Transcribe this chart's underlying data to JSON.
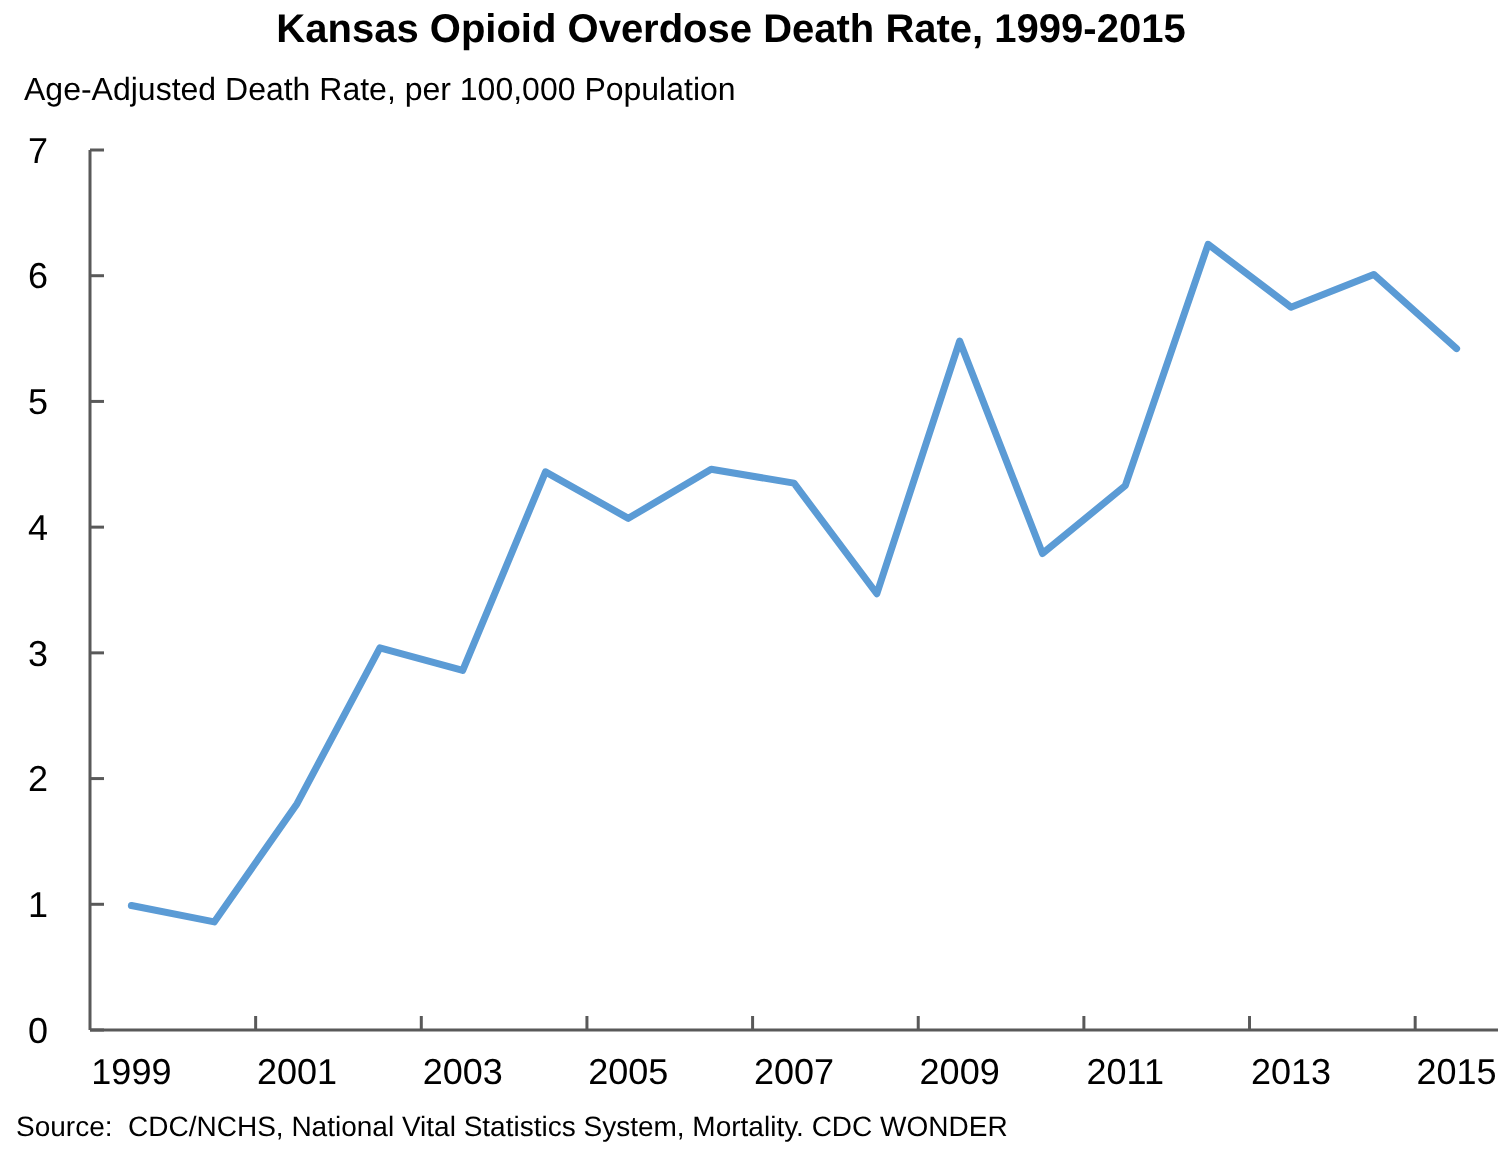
{
  "chart_data": {
    "type": "line",
    "title": "Kansas Opioid Overdose Death Rate, 1999-2015",
    "ylabel": "Age-Adjusted Death Rate, per 100,000 Population",
    "annotations": [
      "Source:  CDC/NCHS, National Vital Statistics System, Mortality. CDC WONDER"
    ],
    "categories": [
      "1999",
      null,
      "2001",
      null,
      "2003",
      null,
      "2005",
      null,
      "2007",
      null,
      "2009",
      null,
      "2011",
      null,
      "2013",
      null,
      "2015"
    ],
    "series": [
      {
        "color": "#5b9bd5",
        "values": [
          0.99,
          0.86,
          1.8,
          3.04,
          2.86,
          4.44,
          4.07,
          4.46,
          4.35,
          3.47,
          5.48,
          3.79,
          4.33,
          6.25,
          5.75,
          6.01,
          5.42
        ]
      }
    ],
    "ylim": [
      0,
      7
    ],
    "yticks": [
      0,
      1,
      2,
      3,
      4,
      5,
      6,
      7
    ],
    "line_style": "solid"
  }
}
